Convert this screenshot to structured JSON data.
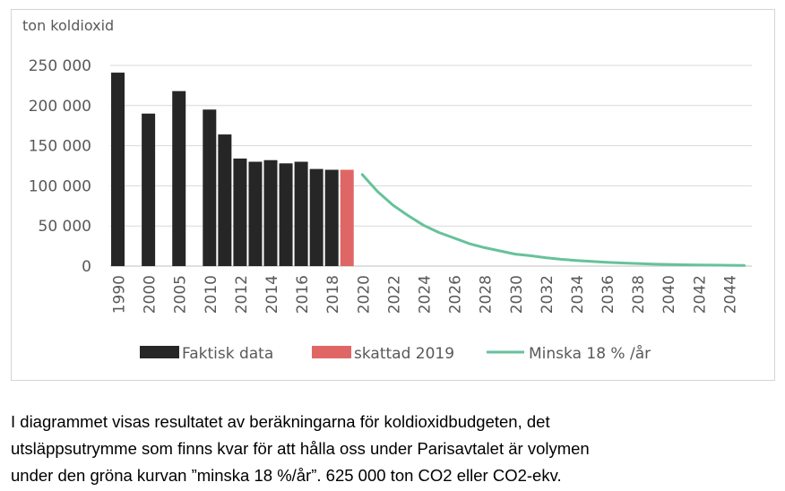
{
  "chart_data": {
    "type": "bar",
    "ylabel": "ton koldioxid",
    "ylim": [
      0,
      250000
    ],
    "yticks": [
      0,
      50000,
      100000,
      150000,
      200000,
      250000
    ],
    "ytick_labels": [
      "0",
      "50 000",
      "100 000",
      "150 000",
      "200 000",
      "250 000"
    ],
    "categories": [
      "1990",
      "",
      "2000",
      "",
      "2005",
      "",
      "2010",
      "2011",
      "2012",
      "2013",
      "2014",
      "2015",
      "2016",
      "2017",
      "2018",
      "2019",
      "2020",
      "2021",
      "2022",
      "2023",
      "2024",
      "2025",
      "2026",
      "2027",
      "2028",
      "2029",
      "2030",
      "2031",
      "2032",
      "2033",
      "2034",
      "2035",
      "2036",
      "2037",
      "2038",
      "2039",
      "2040",
      "2041",
      "2042",
      "2043",
      "2044",
      "2045"
    ],
    "x_tick_labels": [
      "1990",
      "2000",
      "2005",
      "2010",
      "2012",
      "2014",
      "2016",
      "2018",
      "2020",
      "2022",
      "2024",
      "2026",
      "2028",
      "2030",
      "2032",
      "2034",
      "2036",
      "2038",
      "2040",
      "2042",
      "2044"
    ],
    "series": [
      {
        "name": "Faktisk data",
        "type": "bar",
        "color": "#262626",
        "points": [
          {
            "x": "1990",
            "y": 241000
          },
          {
            "x": "2000",
            "y": 190000
          },
          {
            "x": "2005",
            "y": 218000
          },
          {
            "x": "2010",
            "y": 195000
          },
          {
            "x": "2011",
            "y": 164000
          },
          {
            "x": "2012",
            "y": 134000
          },
          {
            "x": "2013",
            "y": 130000
          },
          {
            "x": "2014",
            "y": 132000
          },
          {
            "x": "2015",
            "y": 128000
          },
          {
            "x": "2016",
            "y": 130000
          },
          {
            "x": "2017",
            "y": 121000
          },
          {
            "x": "2018",
            "y": 120000
          }
        ]
      },
      {
        "name": "skattad 2019",
        "type": "bar",
        "color": "#e06666",
        "points": [
          {
            "x": "2019",
            "y": 120000
          }
        ]
      },
      {
        "name": "Minska 18 % /år",
        "type": "line",
        "color": "#66c29a",
        "points": [
          {
            "x": "2020",
            "y": 114000
          },
          {
            "x": "2021",
            "y": 93000
          },
          {
            "x": "2022",
            "y": 76000
          },
          {
            "x": "2023",
            "y": 63000
          },
          {
            "x": "2024",
            "y": 51000
          },
          {
            "x": "2025",
            "y": 42000
          },
          {
            "x": "2026",
            "y": 35000
          },
          {
            "x": "2027",
            "y": 28000
          },
          {
            "x": "2028",
            "y": 23000
          },
          {
            "x": "2029",
            "y": 19000
          },
          {
            "x": "2030",
            "y": 15000
          },
          {
            "x": "2031",
            "y": 13000
          },
          {
            "x": "2032",
            "y": 10500
          },
          {
            "x": "2033",
            "y": 8500
          },
          {
            "x": "2034",
            "y": 7000
          },
          {
            "x": "2035",
            "y": 5800
          },
          {
            "x": "2036",
            "y": 4700
          },
          {
            "x": "2037",
            "y": 3900
          },
          {
            "x": "2038",
            "y": 3200
          },
          {
            "x": "2039",
            "y": 2600
          },
          {
            "x": "2040",
            "y": 2100
          },
          {
            "x": "2041",
            "y": 1700
          },
          {
            "x": "2042",
            "y": 1400
          },
          {
            "x": "2043",
            "y": 1200
          },
          {
            "x": "2044",
            "y": 1000
          },
          {
            "x": "2045",
            "y": 800
          }
        ]
      }
    ],
    "grid": true,
    "legend_position": "bottom"
  },
  "caption": {
    "lines": [
      "I diagrammet visas resultatet av beräkningarna för koldioxidbudgeten, det",
      "utsläppsutrymme som finns kvar för att hålla oss under Parisavtalet är volymen",
      "under den gröna kurvan ”minska 18 %/år”. 625 000 ton CO2 eller CO2-ekv."
    ]
  }
}
